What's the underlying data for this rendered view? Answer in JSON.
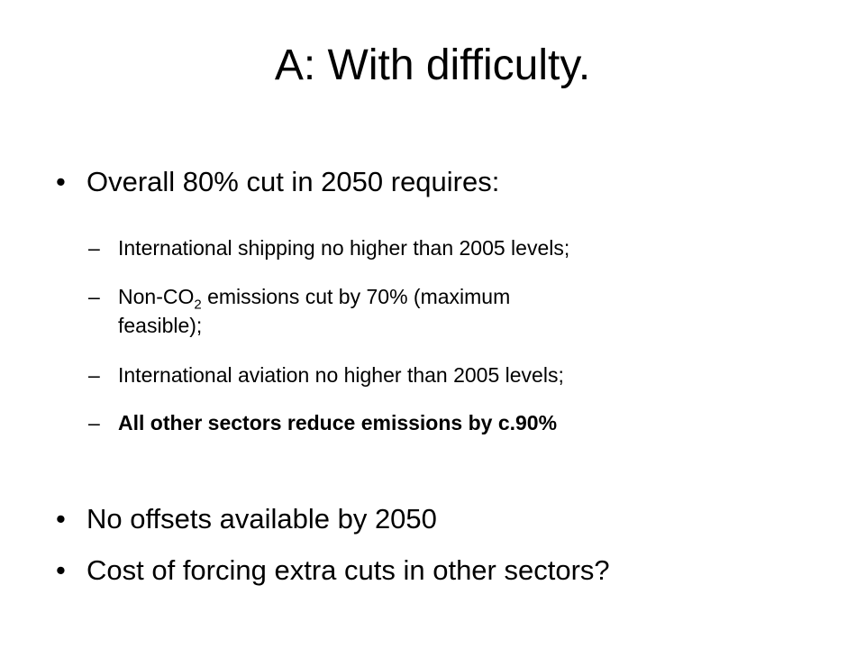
{
  "slide": {
    "title": "A: With difficulty.",
    "bullet_glyph": "•",
    "dash_glyph": "–",
    "bullets": [
      {
        "text": "Overall 80% cut in 2050 requires:"
      },
      {
        "text": "No offsets available by 2050"
      },
      {
        "text": "Cost of forcing extra cuts in other sectors?"
      }
    ],
    "subitems": [
      {
        "text": "International shipping no higher than 2005 levels;"
      },
      {
        "prefix": "Non-CO",
        "subscript": "2",
        "suffix": " emissions cut by 70% (maximum",
        "continuation": "feasible);"
      },
      {
        "text": "International aviation no higher than 2005 levels;"
      },
      {
        "text": "All other sectors reduce emissions by c.90%"
      }
    ]
  }
}
